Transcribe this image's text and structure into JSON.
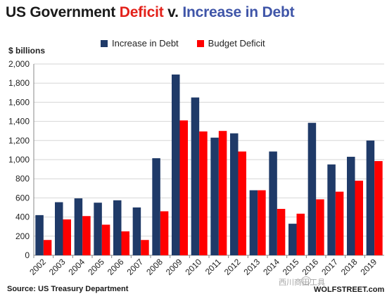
{
  "title": {
    "part1": "US Government ",
    "part2": "Deficit",
    "part3": " v. ",
    "part4": "Increase in Debt"
  },
  "source": "Source: US Treasury Department",
  "credit": "西川商田工具",
  "watermark": "WOLFSTREET.com",
  "colors": {
    "debt": "#1f3a68",
    "deficit": "#ff0000",
    "grid": "#d6d6d6",
    "axis": "#888888"
  },
  "chart_data": {
    "type": "bar",
    "title": "US Government Deficit v. Increase in Debt",
    "ylabel": "$ billions",
    "xlabel": "",
    "ylim": [
      0,
      2000
    ],
    "yticks": [
      0,
      200,
      400,
      600,
      800,
      1000,
      1200,
      1400,
      1600,
      1800,
      2000
    ],
    "ytick_labels": [
      "0",
      "200",
      "400",
      "600",
      "800",
      "1,000",
      "1,200",
      "1,400",
      "1,600",
      "1,800",
      "2,000"
    ],
    "grid": true,
    "legend_position": "top",
    "categories": [
      "2002",
      "2003",
      "2004",
      "2005",
      "2006",
      "2007",
      "2008",
      "2009",
      "2010",
      "2011",
      "2012",
      "2013",
      "2014",
      "2015",
      "2016",
      "2017",
      "2018",
      "2019"
    ],
    "series": [
      {
        "name": "Increase in Debt",
        "color": "#1f3a68",
        "values": [
          420,
          555,
          595,
          550,
          575,
          500,
          1015,
          1890,
          1650,
          1230,
          1275,
          680,
          1085,
          330,
          1385,
          950,
          1030,
          1200
        ]
      },
      {
        "name": "Budget Deficit",
        "color": "#ff0000",
        "values": [
          160,
          375,
          410,
          320,
          250,
          160,
          460,
          1410,
          1295,
          1300,
          1085,
          680,
          485,
          435,
          585,
          665,
          780,
          985
        ]
      }
    ]
  }
}
